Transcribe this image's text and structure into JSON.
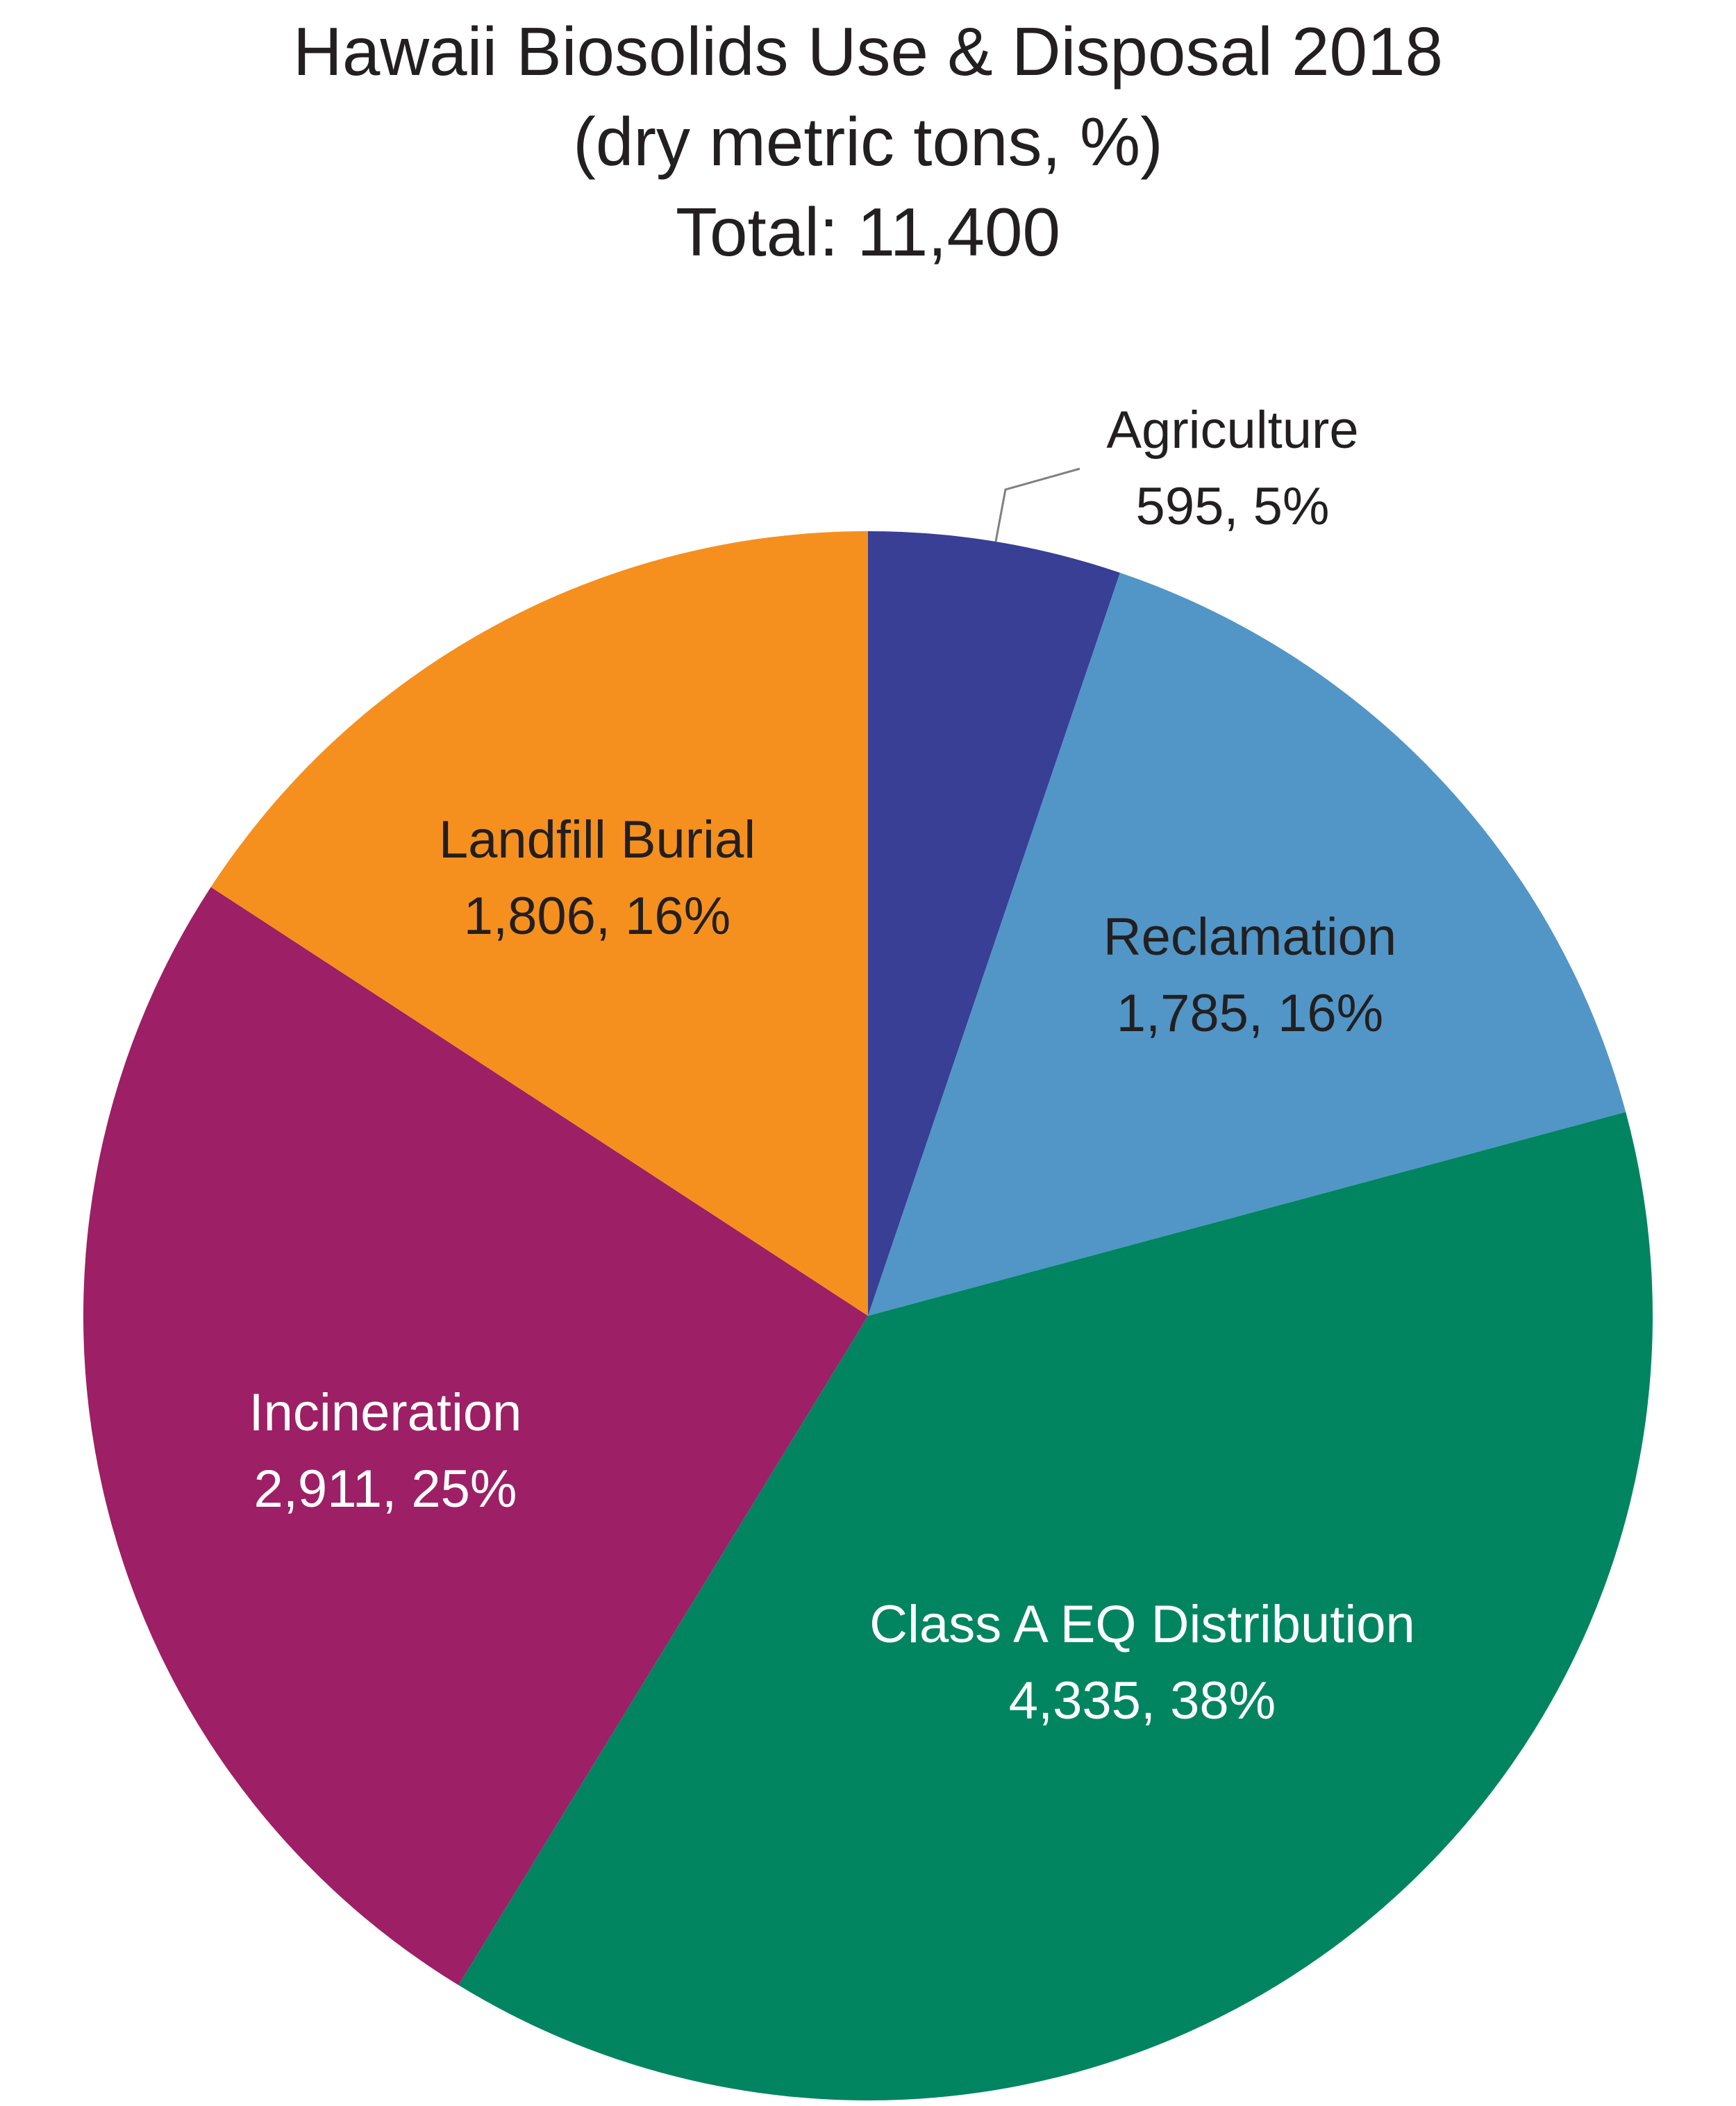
{
  "chart_data": {
    "type": "pie",
    "title": [
      "Hawaii Biosolids Use & Disposal 2018",
      "(dry metric tons, %)",
      "Total: 11,400"
    ],
    "total": 11400,
    "units": "dry metric tons",
    "slices": [
      {
        "name": "Agriculture",
        "value": 595,
        "percent": 5,
        "value_label": "595, 5%",
        "color": "#383f94",
        "label_color": "#231f20"
      },
      {
        "name": "Reclamation",
        "value": 1785,
        "percent": 16,
        "value_label": "1,785, 16%",
        "color": "#5196c7",
        "label_color": "#231f20"
      },
      {
        "name": "Class A EQ Distribution",
        "value": 4335,
        "percent": 38,
        "value_label": "4,335, 38%",
        "color": "#008560",
        "label_color": "#ffffff"
      },
      {
        "name": "Incineration",
        "value": 2911,
        "percent": 25,
        "value_label": "2,911, 25%",
        "color": "#9d1f65",
        "label_color": "#ffffff"
      },
      {
        "name": "Landfill Burial",
        "value": 1806,
        "percent": 16,
        "value_label": "1,806, 16%",
        "color": "#f5901f",
        "label_color": "#231f20"
      }
    ],
    "start_angle": "12 o'clock",
    "direction": "clockwise",
    "leader_line_color": "#808080"
  }
}
